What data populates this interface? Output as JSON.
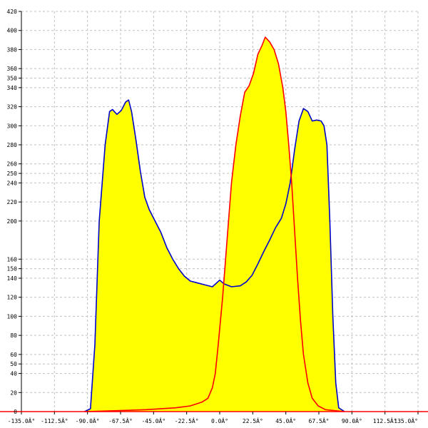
{
  "chart_data": {
    "type": "area",
    "title": "",
    "xlabel": "",
    "ylabel": "",
    "xlim": [
      -135,
      135
    ],
    "ylim": [
      0,
      420
    ],
    "grid": true,
    "x_ticks": [
      -135,
      -112.5,
      -90,
      -67.5,
      -45,
      -22.5,
      0,
      22.5,
      45,
      67.5,
      90,
      112.5,
      135
    ],
    "x_tick_labels": [
      "-135.0Â°",
      "-112.5Â°",
      "-90.0Â°",
      "-67.5Â°",
      "-45.0Â°",
      "-22.5Â°",
      "0.0Â°",
      "22.5Â°",
      "45.0Â°",
      "67.5Â°",
      "90.0Â°",
      "112.5Â°",
      "135.0Â°"
    ],
    "y_ticks": [
      20,
      40,
      50,
      60,
      80,
      100,
      120,
      140,
      150,
      160,
      200,
      220,
      240,
      250,
      260,
      280,
      300,
      320,
      340,
      350,
      360,
      380,
      400,
      420
    ],
    "y_tick_labels": [
      "20",
      "40",
      "50",
      "60",
      "80",
      "100",
      "120",
      "140",
      "150",
      "160",
      "200",
      "220",
      "240",
      "250",
      "260",
      "280",
      "300",
      "320",
      "340",
      "350",
      "360",
      "380",
      "400",
      "420"
    ],
    "fill_color": "#ffff00",
    "series": [
      {
        "color": "#0000cc",
        "points": [
          [
            -92,
            0
          ],
          [
            -88,
            3
          ],
          [
            -85,
            70
          ],
          [
            -82,
            200
          ],
          [
            -78,
            280
          ],
          [
            -75,
            315
          ],
          [
            -73,
            317
          ],
          [
            -70,
            312
          ],
          [
            -67,
            316
          ],
          [
            -64,
            325
          ],
          [
            -62,
            327
          ],
          [
            -60,
            315
          ],
          [
            -57,
            285
          ],
          [
            -54,
            252
          ],
          [
            -51,
            225
          ],
          [
            -48,
            212
          ],
          [
            -44,
            200
          ],
          [
            -40,
            188
          ],
          [
            -36,
            172
          ],
          [
            -32,
            160
          ],
          [
            -28,
            150
          ],
          [
            -24,
            142
          ],
          [
            -20,
            137
          ],
          [
            -15,
            135
          ],
          [
            -10,
            133
          ],
          [
            -5,
            131
          ],
          [
            0,
            138
          ],
          [
            3,
            134
          ],
          [
            8,
            131
          ],
          [
            14,
            132
          ],
          [
            18,
            136
          ],
          [
            22,
            143
          ],
          [
            26,
            155
          ],
          [
            30,
            168
          ],
          [
            34,
            180
          ],
          [
            38,
            193
          ],
          [
            42,
            203
          ],
          [
            45,
            218
          ],
          [
            48,
            240
          ],
          [
            51,
            275
          ],
          [
            54,
            305
          ],
          [
            57,
            318
          ],
          [
            60,
            315
          ],
          [
            63,
            305
          ],
          [
            66,
            306
          ],
          [
            69,
            305
          ],
          [
            71,
            300
          ],
          [
            73,
            280
          ],
          [
            75,
            200
          ],
          [
            77,
            100
          ],
          [
            79,
            30
          ],
          [
            81,
            4
          ],
          [
            85,
            0
          ]
        ]
      },
      {
        "color": "#ff0000",
        "points": [
          [
            -92,
            0
          ],
          [
            -70,
            1
          ],
          [
            -50,
            2
          ],
          [
            -30,
            4
          ],
          [
            -20,
            6
          ],
          [
            -12,
            10
          ],
          [
            -8,
            14
          ],
          [
            -5,
            25
          ],
          [
            -3,
            40
          ],
          [
            -1,
            70
          ],
          [
            2,
            120
          ],
          [
            5,
            180
          ],
          [
            8,
            240
          ],
          [
            11,
            280
          ],
          [
            14,
            310
          ],
          [
            17,
            335
          ],
          [
            20,
            342
          ],
          [
            23,
            355
          ],
          [
            26,
            375
          ],
          [
            29,
            385
          ],
          [
            31,
            393
          ],
          [
            34,
            388
          ],
          [
            37,
            380
          ],
          [
            40,
            365
          ],
          [
            43,
            340
          ],
          [
            45,
            315
          ],
          [
            47,
            280
          ],
          [
            49,
            240
          ],
          [
            51,
            190
          ],
          [
            53,
            140
          ],
          [
            55,
            95
          ],
          [
            57,
            60
          ],
          [
            60,
            30
          ],
          [
            63,
            14
          ],
          [
            67,
            6
          ],
          [
            72,
            2
          ],
          [
            85,
            0
          ]
        ]
      }
    ]
  }
}
